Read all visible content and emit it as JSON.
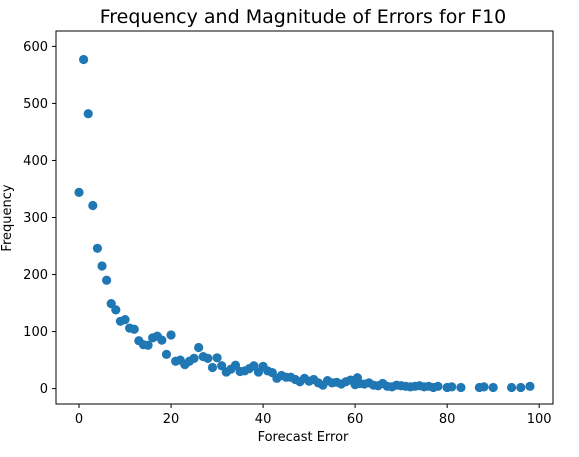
{
  "chart_data": {
    "type": "scatter",
    "title": "Frequency and Magnitude of Errors for F10",
    "xlabel": "Forecast Error",
    "ylabel": "Frequency",
    "xlim": [
      -5,
      103
    ],
    "ylim": [
      -27,
      627
    ],
    "x_ticks": [
      0,
      20,
      40,
      60,
      80,
      100
    ],
    "y_ticks": [
      0,
      100,
      200,
      300,
      400,
      500,
      600
    ],
    "grid": false,
    "marker_color": "#1f77b4",
    "series": [
      {
        "points": [
          [
            0,
            344
          ],
          [
            1,
            577
          ],
          [
            2,
            482
          ],
          [
            3,
            321
          ],
          [
            4,
            246
          ],
          [
            5,
            215
          ],
          [
            6,
            190
          ],
          [
            7,
            149
          ],
          [
            8,
            138
          ],
          [
            9,
            118
          ],
          [
            10,
            121
          ],
          [
            11,
            106
          ],
          [
            12,
            104
          ],
          [
            13,
            84
          ],
          [
            14,
            77
          ],
          [
            15,
            76
          ],
          [
            16,
            89
          ],
          [
            17,
            92
          ],
          [
            18,
            85
          ],
          [
            19,
            60
          ],
          [
            20,
            94
          ],
          [
            21,
            48
          ],
          [
            22,
            50
          ],
          [
            23,
            42
          ],
          [
            24,
            48
          ],
          [
            25,
            53
          ],
          [
            26,
            72
          ],
          [
            27,
            56
          ],
          [
            28,
            53
          ],
          [
            29,
            37
          ],
          [
            30,
            54
          ],
          [
            31,
            40
          ],
          [
            32,
            29
          ],
          [
            33,
            34
          ],
          [
            34,
            41
          ],
          [
            35,
            30
          ],
          [
            36,
            31
          ],
          [
            37,
            35
          ],
          [
            38,
            40
          ],
          [
            39,
            29
          ],
          [
            40,
            39
          ],
          [
            41,
            31
          ],
          [
            42,
            28
          ],
          [
            43,
            18
          ],
          [
            44,
            23
          ],
          [
            45,
            20
          ],
          [
            46,
            20
          ],
          [
            47,
            16
          ],
          [
            48,
            12
          ],
          [
            49,
            18
          ],
          [
            50,
            13
          ],
          [
            51,
            16
          ],
          [
            52,
            10
          ],
          [
            53,
            6
          ],
          [
            54,
            14
          ],
          [
            55,
            10
          ],
          [
            56,
            11
          ],
          [
            57,
            8
          ],
          [
            58,
            12
          ],
          [
            59,
            15
          ],
          [
            60,
            7
          ],
          [
            60.5,
            19
          ],
          [
            61,
            9
          ],
          [
            62,
            8
          ],
          [
            63,
            10
          ],
          [
            64,
            6
          ],
          [
            65,
            5
          ],
          [
            66,
            9
          ],
          [
            67,
            4
          ],
          [
            68,
            3
          ],
          [
            69,
            6
          ],
          [
            70,
            5
          ],
          [
            71,
            4
          ],
          [
            72,
            3
          ],
          [
            73,
            4
          ],
          [
            74,
            5
          ],
          [
            75,
            3
          ],
          [
            76,
            4
          ],
          [
            77,
            2
          ],
          [
            78,
            4
          ],
          [
            80,
            2
          ],
          [
            81,
            3
          ],
          [
            83,
            2
          ],
          [
            87,
            2
          ],
          [
            88,
            3
          ],
          [
            90,
            2
          ],
          [
            94,
            2
          ],
          [
            96,
            2
          ],
          [
            98,
            4
          ]
        ]
      }
    ]
  }
}
